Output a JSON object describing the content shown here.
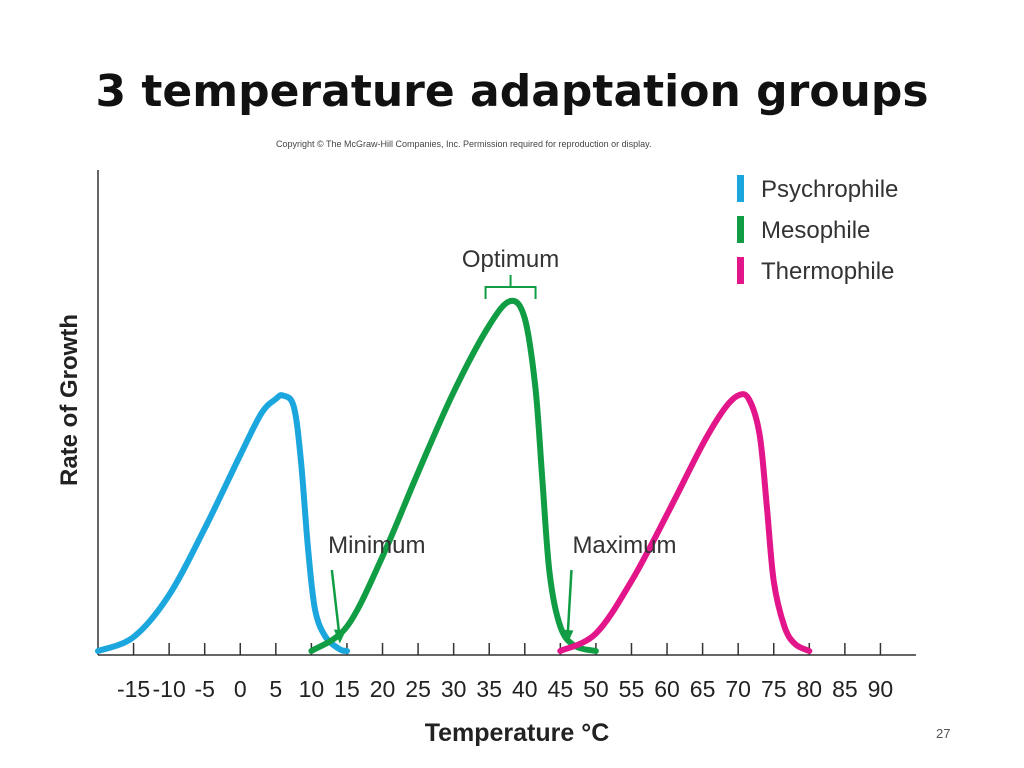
{
  "slide": {
    "title": "3 temperature adaptation groups",
    "copyright": "Copyright © The McGraw-Hill Companies, Inc. Permission required for reproduction or display.",
    "page_number": "27"
  },
  "chart_data": {
    "type": "line",
    "title": "",
    "xlabel": "Temperature °C",
    "ylabel": "Rate of Growth",
    "xlim": [
      -20,
      95
    ],
    "ylim": [
      0,
      1
    ],
    "xticks": [
      -15,
      -10,
      -5,
      0,
      5,
      10,
      15,
      20,
      25,
      30,
      35,
      40,
      45,
      50,
      55,
      60,
      65,
      70,
      75,
      80,
      85,
      90
    ],
    "grid": false,
    "legend_position": "top-right",
    "series": [
      {
        "name": "Psychrophile",
        "color": "#1ca6de",
        "points": [
          [
            -20,
            0
          ],
          [
            -15,
            0.04
          ],
          [
            -10,
            0.16
          ],
          [
            -5,
            0.35
          ],
          [
            0,
            0.56
          ],
          [
            3,
            0.68
          ],
          [
            5,
            0.72
          ],
          [
            6,
            0.73
          ],
          [
            7.5,
            0.7
          ],
          [
            8.5,
            0.55
          ],
          [
            9.5,
            0.3
          ],
          [
            10.5,
            0.12
          ],
          [
            12,
            0.04
          ],
          [
            14,
            0.005
          ],
          [
            15,
            0
          ]
        ]
      },
      {
        "name": "Mesophile",
        "color": "#119d44",
        "points": [
          [
            10,
            0
          ],
          [
            15,
            0.07
          ],
          [
            20,
            0.27
          ],
          [
            25,
            0.51
          ],
          [
            30,
            0.74
          ],
          [
            35,
            0.93
          ],
          [
            38,
            1.0
          ],
          [
            40,
            0.95
          ],
          [
            41.5,
            0.75
          ],
          [
            42.5,
            0.48
          ],
          [
            43.5,
            0.22
          ],
          [
            45,
            0.07
          ],
          [
            47,
            0.015
          ],
          [
            50,
            0
          ]
        ]
      },
      {
        "name": "Thermophile",
        "color": "#e2158a",
        "points": [
          [
            45,
            0
          ],
          [
            50,
            0.05
          ],
          [
            55,
            0.2
          ],
          [
            60,
            0.39
          ],
          [
            65,
            0.59
          ],
          [
            68,
            0.69
          ],
          [
            70,
            0.73
          ],
          [
            71.5,
            0.72
          ],
          [
            73,
            0.62
          ],
          [
            74,
            0.42
          ],
          [
            75,
            0.2
          ],
          [
            76.5,
            0.07
          ],
          [
            78,
            0.02
          ],
          [
            80,
            0
          ]
        ]
      }
    ],
    "annotations": [
      {
        "label": "Optimum",
        "x": 38,
        "y": 1.0
      },
      {
        "label": "Minimum",
        "x": 14,
        "y": 0.01
      },
      {
        "label": "Maximum",
        "x": 46,
        "y": 0.01
      }
    ]
  }
}
